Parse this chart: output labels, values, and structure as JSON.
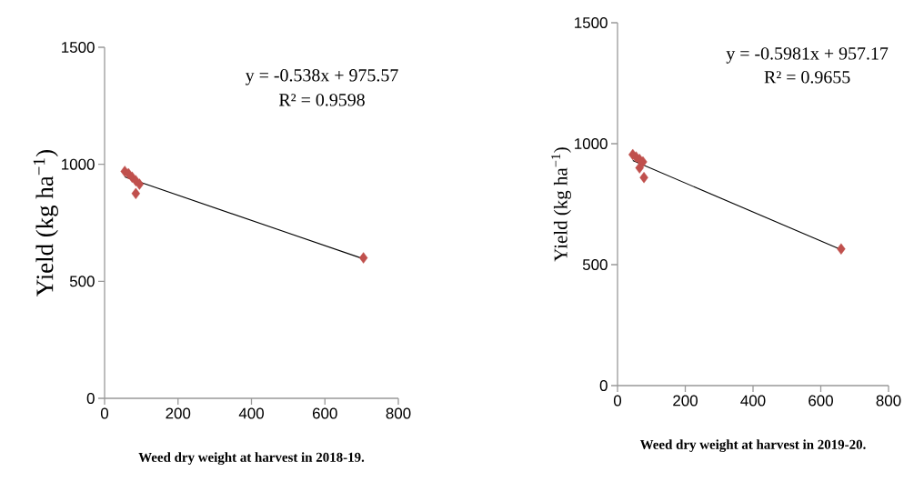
{
  "chart_data": [
    {
      "type": "scatter",
      "xlabel": "Weed dry weight at harvest in 2018-19.",
      "ylabel": "Yield (kg ha$^{−1}$)",
      "xlim": [
        0,
        800
      ],
      "ylim": [
        0,
        1500
      ],
      "xticks": [
        0,
        200,
        400,
        600,
        800
      ],
      "yticks": [
        0,
        500,
        1000,
        1500
      ],
      "marker": "diamond",
      "annotations": [
        "y = -0.538x + 975.57",
        "R² = 0.9598"
      ],
      "series": [
        {
          "type": "scatter",
          "color": "#c0504d",
          "x": [
            55,
            65,
            75,
            85,
            95,
            85,
            705
          ],
          "values": [
            970,
            960,
            945,
            930,
            915,
            875,
            600
          ]
        },
        {
          "type": "line",
          "color": "#000000",
          "marker": "none",
          "line_style": "solid",
          "x": [
            55,
            705
          ],
          "values": [
            946,
            596
          ]
        }
      ]
    },
    {
      "type": "scatter",
      "xlabel": "Weed dry weight at harvest in 2019-20.",
      "ylabel": "Yield (kg ha$^{−1}$)",
      "xlim": [
        0,
        800
      ],
      "ylim": [
        0,
        1500
      ],
      "xticks": [
        0,
        200,
        400,
        600,
        800
      ],
      "yticks": [
        0,
        500,
        1000,
        1500
      ],
      "marker": "diamond",
      "annotations": [
        "y = -0.5981x + 957.17",
        "R² = 0.9655"
      ],
      "series": [
        {
          "type": "scatter",
          "color": "#c0504d",
          "x": [
            45,
            55,
            65,
            75,
            65,
            78,
            660
          ],
          "values": [
            955,
            945,
            935,
            925,
            900,
            860,
            565
          ]
        },
        {
          "type": "line",
          "color": "#000000",
          "marker": "none",
          "line_style": "solid",
          "x": [
            45,
            660
          ],
          "values": [
            930,
            562
          ]
        }
      ]
    }
  ]
}
